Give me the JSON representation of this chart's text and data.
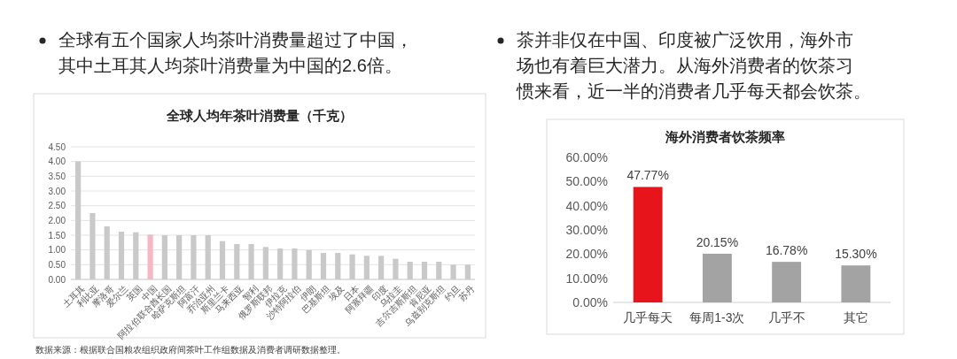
{
  "chart_data": [
    {
      "type": "bar",
      "title": "全球人均年茶叶消费量（千克）",
      "categories": [
        "土耳其",
        "利比亚",
        "摩洛哥",
        "爱尔兰",
        "英国",
        "中国",
        "阿拉伯联合酋长国",
        "哈萨克斯坦",
        "阿富汗",
        "乔治亚州",
        "斯里兰卡",
        "马来西亚",
        "智利",
        "俄罗斯联邦",
        "伊拉克",
        "沙特阿拉伯",
        "伊朗",
        "巴基斯坦",
        "埃及",
        "日本",
        "阿塞拜疆",
        "印度",
        "乌拉圭",
        "吉尔吉斯斯坦",
        "肯尼亚",
        "乌兹别克斯坦",
        "约旦",
        "苏丹"
      ],
      "values": [
        4.0,
        2.25,
        1.8,
        1.62,
        1.6,
        1.52,
        1.5,
        1.5,
        1.5,
        1.5,
        1.3,
        1.2,
        1.2,
        1.1,
        1.05,
        1.05,
        1.0,
        0.9,
        0.9,
        0.85,
        0.8,
        0.8,
        0.7,
        0.6,
        0.6,
        0.6,
        0.5,
        0.5
      ],
      "colors": [
        "#c9c9c9",
        "#c9c9c9",
        "#c9c9c9",
        "#c9c9c9",
        "#c9c9c9",
        "#f5b8c4",
        "#c9c9c9",
        "#c9c9c9",
        "#c9c9c9",
        "#c9c9c9",
        "#c9c9c9",
        "#c9c9c9",
        "#c9c9c9",
        "#c9c9c9",
        "#c9c9c9",
        "#c9c9c9",
        "#c9c9c9",
        "#c9c9c9",
        "#c9c9c9",
        "#c9c9c9",
        "#c9c9c9",
        "#c9c9c9",
        "#c9c9c9",
        "#c9c9c9",
        "#c9c9c9",
        "#c9c9c9",
        "#c9c9c9",
        "#c9c9c9"
      ],
      "ylim": [
        0,
        4.5
      ],
      "yticks": [
        {
          "value": 0,
          "label": "0.00"
        },
        {
          "value": 0.5,
          "label": "0.50"
        },
        {
          "value": 1,
          "label": "1.00"
        },
        {
          "value": 1.5,
          "label": "1.50"
        },
        {
          "value": 2,
          "label": "2.00"
        },
        {
          "value": 2.5,
          "label": "2.50"
        },
        {
          "value": 3,
          "label": "3.00"
        },
        {
          "value": 3.5,
          "label": "3.50"
        },
        {
          "value": 4,
          "label": "4.00"
        },
        {
          "value": 4.5,
          "label": "4.50"
        }
      ],
      "grid": "y",
      "annotations": [
        "全球有五个国家人均茶叶消费量超过了中国，其中土耳其人均茶叶消费量为中国的2.6倍。",
        "数据来源：根据联合国粮农组织政府间茶叶工作组数据及消费者调研数据整理。"
      ]
    },
    {
      "type": "bar",
      "title": "海外消费者饮茶频率",
      "categories": [
        "几乎每天",
        "每周1-3次",
        "几乎不",
        "其它"
      ],
      "values": [
        47.77,
        20.15,
        16.78,
        15.3
      ],
      "value_labels": [
        "47.77%",
        "20.15%",
        "16.78%",
        "15.30%"
      ],
      "colors": [
        "#e8141c",
        "#a3a3a3",
        "#a3a3a3",
        "#a3a3a3"
      ],
      "ylim": [
        0,
        60
      ],
      "yticks": [
        {
          "value": 0,
          "label": "0.00%"
        },
        {
          "value": 10,
          "label": "10.00%"
        },
        {
          "value": 20,
          "label": "20.00%"
        },
        {
          "value": 30,
          "label": "30.00%"
        },
        {
          "value": 40,
          "label": "40.00%"
        },
        {
          "value": 50,
          "label": "50.00%"
        },
        {
          "value": 60,
          "label": "60.00%"
        }
      ],
      "annotations": [
        "茶并非仅在中国、印度被广泛饮用，海外市场也有着巨大潜力。从海外消费者的饮茶习惯来看，近一半的消费者几乎每天都会饮茶。"
      ]
    }
  ]
}
